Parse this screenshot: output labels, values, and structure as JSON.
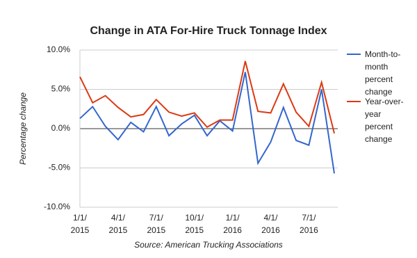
{
  "chart_data": {
    "type": "line",
    "title": "Change in ATA For-Hire Truck Tonnage Index",
    "y_label": "Percentage change",
    "source": "Source: American Trucking Associations",
    "categories": [
      "1/1/2015",
      null,
      null,
      "4/1/2015",
      null,
      null,
      "7/1/2015",
      null,
      null,
      "10/1/2015",
      null,
      null,
      "1/1/2016",
      null,
      null,
      "4/1/2016",
      null,
      null,
      "7/1/2016",
      null,
      null
    ],
    "series": [
      {
        "name": "Month-to-month percent change",
        "color": "#3366cc",
        "values": [
          1.3,
          2.8,
          0.3,
          -1.4,
          0.8,
          -0.4,
          2.8,
          -0.9,
          0.6,
          1.7,
          -0.9,
          1.0,
          -0.3,
          7.2,
          -4.4,
          -1.7,
          2.7,
          -1.5,
          -2.1,
          5.0,
          -5.7
        ]
      },
      {
        "name": "Year-over-year percent change",
        "color": "#dc3912",
        "values": [
          6.6,
          3.3,
          4.2,
          2.7,
          1.5,
          1.8,
          3.7,
          2.1,
          1.6,
          2.0,
          0.2,
          1.1,
          1.1,
          8.6,
          2.2,
          2.0,
          5.7,
          2.1,
          0.3,
          5.9,
          -0.6
        ]
      }
    ],
    "ylim": [
      -10,
      10
    ],
    "yticks": [
      {
        "value": -10,
        "label": "-10.0%"
      },
      {
        "value": -5,
        "label": "-5.0%"
      },
      {
        "value": 0,
        "label": "0.0%"
      },
      {
        "value": 5,
        "label": "5.0%"
      },
      {
        "value": 10,
        "label": "10.0%"
      }
    ],
    "grid": true,
    "legend": "right"
  }
}
